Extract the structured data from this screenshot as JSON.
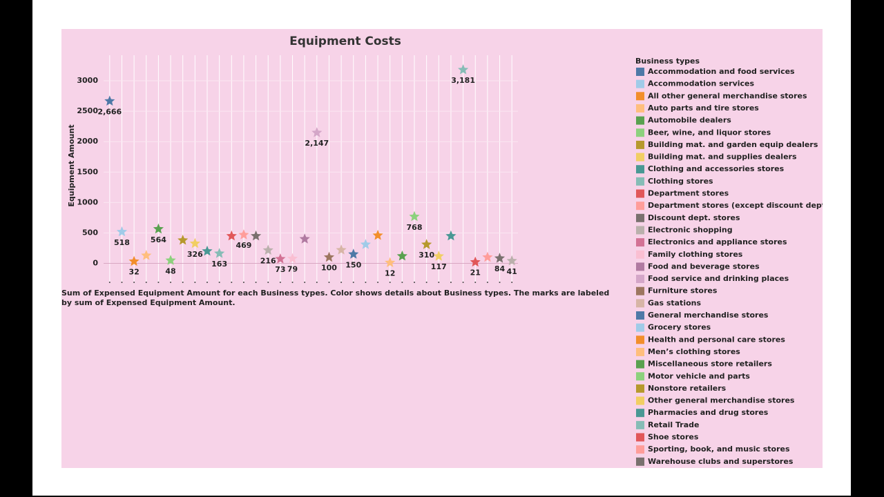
{
  "chart_data": {
    "type": "star-scatter",
    "title": "Equipment Costs",
    "y_label": "Equipment Amount",
    "caption": "Sum of Expensed Equipment Amount for each Business types.  Color shows details about Business types.  The marks are labeled by sum of Expensed Equipment Amount.",
    "legend_title": "Business types",
    "categories": [
      "Accommodation and food services",
      "Accommodation services",
      "All other general merchandise stores",
      "Auto parts and tire stores",
      "Automobile dealers",
      "Beer, wine, and liquor stores",
      "Building mat. and garden equip dealers",
      "Building mat. and supplies dealers",
      "Clothing and accessories stores",
      "Clothing stores",
      "Department stores",
      "Department stores (except discount dept. stores)",
      "Discount dept. stores",
      "Electronic shopping",
      "Electronics and appliance stores",
      "Family clothing stores",
      "Food and beverage stores",
      "Food service and drinking places",
      "Furniture stores",
      "Gas stations",
      "General merchandise stores",
      "Grocery stores",
      "Health and personal care stores",
      "Men’s clothing stores",
      "Miscellaneous store retailers",
      "Motor vehicle and parts",
      "Nonstore retailers",
      "Other general merchandise stores",
      "Pharmacies and drug stores",
      "Retail Trade",
      "Shoe stores",
      "Sporting, book, and  music stores",
      "Warehouse clubs and superstores",
      null
    ],
    "values": [
      2666,
      518,
      32,
      130,
      564,
      48,
      380,
      326,
      200,
      163,
      450,
      469,
      450,
      216,
      73,
      79,
      400,
      2147,
      100,
      220,
      150,
      310,
      460,
      12,
      120,
      768,
      310,
      117,
      450,
      3181,
      21,
      100,
      84,
      41
    ],
    "value_labels": [
      "2,666",
      "518",
      "32",
      null,
      "564",
      "48",
      null,
      "326",
      null,
      "163",
      null,
      "469",
      null,
      "216",
      "73",
      "79",
      null,
      "2,147",
      "100",
      null,
      "150",
      null,
      null,
      "12",
      null,
      "768",
      "310",
      "117",
      null,
      "3,181",
      "21",
      null,
      "84",
      "41"
    ],
    "colors": [
      "#4e79a7",
      "#a0cbe8",
      "#f28e2b",
      "#ffbe7d",
      "#59a14f",
      "#8cd17d",
      "#b6992d",
      "#f1ce63",
      "#499894",
      "#86bcb6",
      "#e15759",
      "#ff9d9a",
      "#79706e",
      "#bab0ac",
      "#d37295",
      "#fabfd2",
      "#b07aa1",
      "#d4a6c8",
      "#9d7660",
      "#d7b5a6",
      "#4e79a7",
      "#a0cbe8",
      "#f28e2b",
      "#ffbe7d",
      "#59a14f",
      "#8cd17d",
      "#b6992d",
      "#f1ce63",
      "#499894",
      "#86bcb6",
      "#e15759",
      "#ff9d9a",
      "#79706e",
      "#bab0ac"
    ],
    "ylim": [
      -300,
      3420
    ],
    "yticks": [
      0,
      500,
      1000,
      1500,
      2000,
      2500,
      3000
    ],
    "grid": true
  }
}
